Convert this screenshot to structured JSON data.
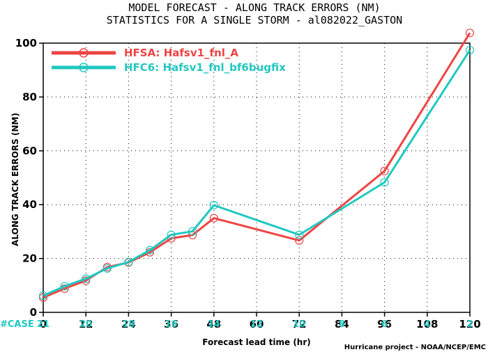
{
  "chart_data": {
    "type": "line",
    "title": "MODEL FORECAST - ALONG TRACK ERRORS (NM)",
    "subtitle": "STATISTICS FOR A SINGLE STORM - al082022_GASTON",
    "xlabel": "Forecast lead time (hr)",
    "ylabel": "ALONG TRACK ERRORS (NM)",
    "xlim": [
      0,
      120
    ],
    "ylim": [
      0,
      100
    ],
    "x_ticks": [
      "0",
      "12",
      "24",
      "36",
      "48",
      "60",
      "72",
      "84",
      "96",
      "108",
      "120"
    ],
    "y_ticks": [
      "0",
      "20",
      "40",
      "60",
      "80",
      "100"
    ],
    "legend_position": "top-left",
    "series": [
      {
        "name": "HFSA: Hafsv1_fnl_A",
        "color": "#ee4444",
        "x": [
          0,
          6,
          12,
          18,
          24,
          30,
          36,
          42,
          48,
          72,
          96,
          120
        ],
        "y": [
          5.5,
          8.8,
          11.8,
          16.8,
          18.5,
          22.3,
          27.5,
          28.7,
          35.0,
          26.7,
          52.5,
          103.8
        ]
      },
      {
        "name": "HFC6: Hafsv1_fnl_bf6bugfix",
        "color": "#20c8c0",
        "x": [
          0,
          6,
          12,
          18,
          24,
          30,
          36,
          42,
          48,
          72,
          96,
          120
        ],
        "y": [
          6.2,
          9.7,
          12.5,
          16.3,
          18.7,
          23.1,
          28.8,
          30.1,
          39.8,
          28.8,
          48.3,
          97.4
        ]
      }
    ],
    "case_label": "#CASE",
    "case_counts": [
      "21",
      "20",
      "18",
      "16",
      "14",
      "12",
      "10",
      "8",
      "6",
      "4",
      "2"
    ],
    "credit": "Hurricane project - NOAA/NCEP/EMC"
  }
}
